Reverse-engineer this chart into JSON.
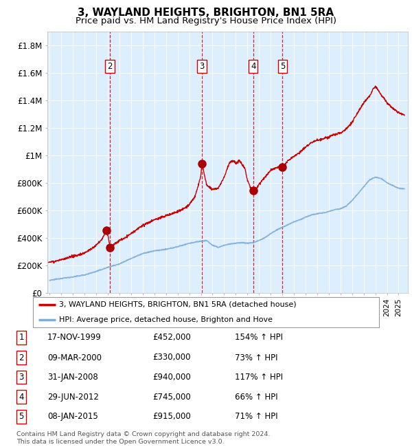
{
  "title": "3, WAYLAND HEIGHTS, BRIGHTON, BN1 5RA",
  "subtitle": "Price paid vs. HM Land Registry's House Price Index (HPI)",
  "title_fontsize": 11,
  "subtitle_fontsize": 9.5,
  "background_color": "#ffffff",
  "plot_bg_color": "#ddeeff",
  "grid_color": "#ffffff",
  "ylim": [
    0,
    1900000
  ],
  "xlim_start": 1994.8,
  "xlim_end": 2025.8,
  "yticks": [
    0,
    200000,
    400000,
    600000,
    800000,
    1000000,
    1200000,
    1400000,
    1600000,
    1800000
  ],
  "ytick_labels": [
    "£0",
    "£200K",
    "£400K",
    "£600K",
    "£800K",
    "£1M",
    "£1.2M",
    "£1.4M",
    "£1.6M",
    "£1.8M"
  ],
  "sale_dates": [
    1999.88,
    2000.18,
    2008.08,
    2012.5,
    2015.02
  ],
  "sale_prices": [
    452000,
    330000,
    940000,
    745000,
    915000
  ],
  "sale_labels": [
    "1",
    "2",
    "3",
    "4",
    "5"
  ],
  "vline_dates": [
    2000.18,
    2008.08,
    2012.5,
    2015.02
  ],
  "vline_labels": [
    "2",
    "3",
    "4",
    "5"
  ],
  "legend_line1": "3, WAYLAND HEIGHTS, BRIGHTON, BN1 5RA (detached house)",
  "legend_line2": "HPI: Average price, detached house, Brighton and Hove",
  "table_rows": [
    {
      "num": "1",
      "date": "17-NOV-1999",
      "price": "£452,000",
      "hpi": "154% ↑ HPI"
    },
    {
      "num": "2",
      "date": "09-MAR-2000",
      "price": "£330,000",
      "hpi": "73% ↑ HPI"
    },
    {
      "num": "3",
      "date": "31-JAN-2008",
      "price": "£940,000",
      "hpi": "117% ↑ HPI"
    },
    {
      "num": "4",
      "date": "29-JUN-2012",
      "price": "£745,000",
      "hpi": "66% ↑ HPI"
    },
    {
      "num": "5",
      "date": "08-JAN-2015",
      "price": "£915,000",
      "hpi": "71% ↑ HPI"
    }
  ],
  "footer": "Contains HM Land Registry data © Crown copyright and database right 2024.\nThis data is licensed under the Open Government Licence v3.0.",
  "red_color": "#cc0000",
  "blue_color": "#7dadd4",
  "dot_color": "#aa0000",
  "vline_color": "#cc0000"
}
